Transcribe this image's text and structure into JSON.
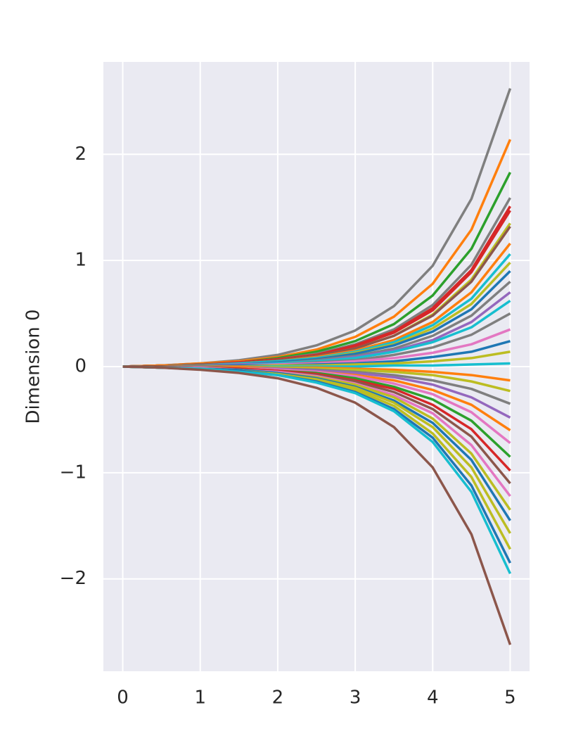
{
  "chart_data": {
    "type": "line",
    "ylabel": "Dimension 0",
    "x": [
      0,
      0.5,
      1,
      1.5,
      2,
      2.5,
      3,
      3.5,
      4,
      4.5,
      5
    ],
    "xlim": [
      -0.25,
      5.25
    ],
    "ylim": [
      -2.87,
      2.87
    ],
    "xticks": [
      0,
      1,
      2,
      3,
      4,
      5
    ],
    "yticks": [
      {
        "value": -2,
        "label": "−2"
      },
      {
        "value": -1,
        "label": "−1"
      },
      0,
      1,
      2
    ],
    "grid": true,
    "series": [
      {
        "color": "#7f7f7f",
        "values": [
          0,
          0.01,
          0.03,
          0.06,
          0.11,
          0.2,
          0.34,
          0.57,
          0.95,
          1.58,
          2.62
        ]
      },
      {
        "color": "#ff7f0e",
        "values": [
          0,
          0.01,
          0.03,
          0.05,
          0.09,
          0.16,
          0.28,
          0.47,
          0.78,
          1.29,
          2.14
        ]
      },
      {
        "color": "#2ca02c",
        "values": [
          0,
          0.01,
          0.02,
          0.04,
          0.08,
          0.14,
          0.24,
          0.4,
          0.67,
          1.11,
          1.83
        ]
      },
      {
        "color": "#7f7f7f",
        "values": [
          0,
          0.01,
          0.02,
          0.04,
          0.07,
          0.12,
          0.21,
          0.35,
          0.58,
          0.96,
          1.59
        ]
      },
      {
        "color": "#d62728",
        "values": [
          0,
          0.01,
          0.02,
          0.04,
          0.07,
          0.11,
          0.2,
          0.33,
          0.55,
          0.91,
          1.51
        ]
      },
      {
        "color": "#d62728",
        "values": [
          0,
          0.01,
          0.02,
          0.03,
          0.06,
          0.11,
          0.19,
          0.32,
          0.53,
          0.89,
          1.47
        ]
      },
      {
        "color": "#bcbd22",
        "values": [
          0,
          0.01,
          0.02,
          0.03,
          0.06,
          0.1,
          0.17,
          0.29,
          0.49,
          0.82,
          1.35
        ]
      },
      {
        "color": "#8c564b",
        "values": [
          0,
          0.01,
          0.02,
          0.03,
          0.06,
          0.1,
          0.17,
          0.29,
          0.48,
          0.8,
          1.32
        ]
      },
      {
        "color": "#ff7f0e",
        "values": [
          0,
          0.01,
          0.01,
          0.03,
          0.05,
          0.09,
          0.15,
          0.25,
          0.42,
          0.7,
          1.16
        ]
      },
      {
        "color": "#17becf",
        "values": [
          0,
          0,
          0.01,
          0.03,
          0.05,
          0.08,
          0.14,
          0.23,
          0.39,
          0.64,
          1.06
        ]
      },
      {
        "color": "#bcbd22",
        "values": [
          0,
          0,
          0.01,
          0.02,
          0.04,
          0.07,
          0.13,
          0.21,
          0.36,
          0.59,
          0.98
        ]
      },
      {
        "color": "#1f77b4",
        "values": [
          0,
          0,
          0.01,
          0.02,
          0.04,
          0.07,
          0.12,
          0.2,
          0.33,
          0.54,
          0.9
        ]
      },
      {
        "color": "#7f7f7f",
        "values": [
          0,
          0,
          0.01,
          0.02,
          0.03,
          0.06,
          0.1,
          0.17,
          0.29,
          0.48,
          0.8
        ]
      },
      {
        "color": "#9467bd",
        "values": [
          0,
          0,
          0.01,
          0.02,
          0.03,
          0.05,
          0.09,
          0.15,
          0.25,
          0.42,
          0.7
        ]
      },
      {
        "color": "#17becf",
        "values": [
          0,
          0,
          0.01,
          0.01,
          0.03,
          0.05,
          0.08,
          0.14,
          0.23,
          0.37,
          0.62
        ]
      },
      {
        "color": "#7f7f7f",
        "values": [
          0,
          0,
          0.01,
          0.01,
          0.02,
          0.04,
          0.06,
          0.11,
          0.18,
          0.3,
          0.5
        ]
      },
      {
        "color": "#e377c2",
        "values": [
          0,
          0,
          0,
          0.01,
          0.02,
          0.03,
          0.05,
          0.08,
          0.13,
          0.21,
          0.35
        ]
      },
      {
        "color": "#1f77b4",
        "values": [
          0,
          0,
          0,
          0.01,
          0.01,
          0.02,
          0.03,
          0.05,
          0.09,
          0.14,
          0.24
        ]
      },
      {
        "color": "#bcbd22",
        "values": [
          0,
          0,
          0,
          0,
          0.01,
          0.01,
          0.02,
          0.03,
          0.05,
          0.08,
          0.14
        ]
      },
      {
        "color": "#17becf",
        "values": [
          0,
          0,
          0,
          0,
          0,
          0,
          0,
          0.01,
          0.01,
          0.02,
          0.03
        ]
      },
      {
        "color": "#ff7f0e",
        "values": [
          0,
          0,
          0,
          0,
          -0.01,
          -0.01,
          -0.02,
          -0.03,
          -0.05,
          -0.08,
          -0.13
        ]
      },
      {
        "color": "#bcbd22",
        "values": [
          0,
          0,
          0,
          -0.01,
          -0.01,
          -0.02,
          -0.03,
          -0.05,
          -0.08,
          -0.14,
          -0.23
        ]
      },
      {
        "color": "#7f7f7f",
        "values": [
          0,
          0,
          0,
          -0.01,
          -0.02,
          -0.03,
          -0.05,
          -0.08,
          -0.13,
          -0.21,
          -0.35
        ]
      },
      {
        "color": "#9467bd",
        "values": [
          0,
          0,
          -0.01,
          -0.01,
          -0.02,
          -0.04,
          -0.06,
          -0.1,
          -0.17,
          -0.29,
          -0.48
        ]
      },
      {
        "color": "#ff7f0e",
        "values": [
          0,
          0,
          -0.01,
          -0.01,
          -0.03,
          -0.05,
          -0.08,
          -0.13,
          -0.22,
          -0.36,
          -0.6
        ]
      },
      {
        "color": "#e377c2",
        "values": [
          0,
          0,
          -0.01,
          -0.02,
          -0.03,
          -0.05,
          -0.09,
          -0.16,
          -0.26,
          -0.43,
          -0.72
        ]
      },
      {
        "color": "#2ca02c",
        "values": [
          0,
          0,
          -0.01,
          -0.02,
          -0.04,
          -0.06,
          -0.11,
          -0.19,
          -0.31,
          -0.51,
          -0.85
        ]
      },
      {
        "color": "#d62728",
        "values": [
          0,
          0,
          -0.01,
          -0.02,
          -0.04,
          -0.07,
          -0.13,
          -0.21,
          -0.36,
          -0.59,
          -0.98
        ]
      },
      {
        "color": "#8c564b",
        "values": [
          0,
          0,
          -0.01,
          -0.03,
          -0.05,
          -0.08,
          -0.14,
          -0.24,
          -0.4,
          -0.66,
          -1.1
        ]
      },
      {
        "color": "#e377c2",
        "values": [
          0,
          -0.01,
          -0.01,
          -0.03,
          -0.05,
          -0.09,
          -0.16,
          -0.27,
          -0.44,
          -0.74,
          -1.22
        ]
      },
      {
        "color": "#bcbd22",
        "values": [
          0,
          -0.01,
          -0.02,
          -0.03,
          -0.06,
          -0.1,
          -0.17,
          -0.29,
          -0.49,
          -0.82,
          -1.35
        ]
      },
      {
        "color": "#1f77b4",
        "values": [
          0,
          -0.01,
          -0.02,
          -0.03,
          -0.06,
          -0.11,
          -0.19,
          -0.32,
          -0.53,
          -0.88,
          -1.45
        ]
      },
      {
        "color": "#bcbd22",
        "values": [
          0,
          -0.01,
          -0.02,
          -0.04,
          -0.07,
          -0.12,
          -0.2,
          -0.34,
          -0.57,
          -0.95,
          -1.57
        ]
      },
      {
        "color": "#bcbd22",
        "values": [
          0,
          -0.01,
          -0.02,
          -0.04,
          -0.07,
          -0.13,
          -0.22,
          -0.37,
          -0.63,
          -1.04,
          -1.72
        ]
      },
      {
        "color": "#1f77b4",
        "values": [
          0,
          -0.01,
          -0.02,
          -0.04,
          -0.08,
          -0.14,
          -0.24,
          -0.4,
          -0.67,
          -1.12,
          -1.85
        ]
      },
      {
        "color": "#17becf",
        "values": [
          0,
          -0.01,
          -0.02,
          -0.05,
          -0.08,
          -0.15,
          -0.25,
          -0.42,
          -0.71,
          -1.18,
          -1.95
        ]
      },
      {
        "color": "#8c564b",
        "values": [
          0,
          -0.01,
          -0.03,
          -0.06,
          -0.11,
          -0.2,
          -0.34,
          -0.57,
          -0.95,
          -1.58,
          -2.62
        ]
      }
    ]
  }
}
